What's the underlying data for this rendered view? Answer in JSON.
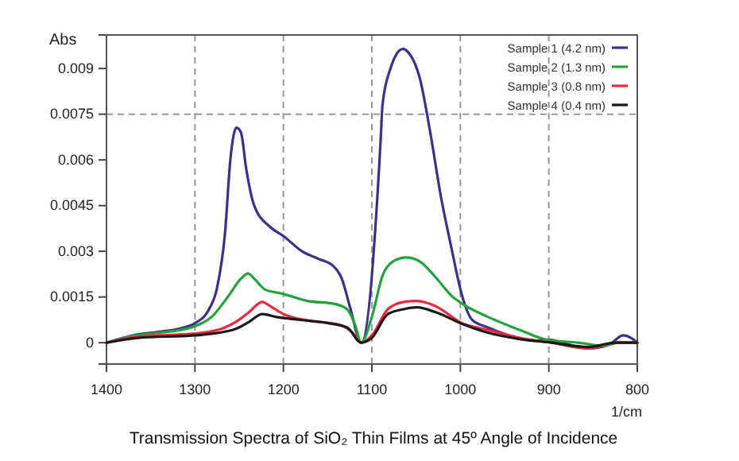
{
  "chart_data": {
    "type": "line",
    "title": "Transmission Spectra of SiO₂ Thin Films at 45º Angle of Incidence",
    "xlabel": "1/cm",
    "ylabel": "Abs",
    "xlim": [
      1400,
      800
    ],
    "xticks": [
      1400,
      1300,
      1200,
      1100,
      1000,
      900,
      800
    ],
    "ylim": [
      -0.0007,
      0.0101
    ],
    "yticks": [
      0,
      0.0015,
      0.003,
      0.0045,
      0.006,
      0.0075,
      0.009
    ],
    "grid": "x",
    "legend": "top right",
    "line_style": "solid",
    "marker": "none",
    "ref_lines": [
      {
        "axis": "y",
        "value": 0.0075,
        "color": "#999999",
        "line_style": "dashed"
      }
    ],
    "series": [
      {
        "name": "Sample 1 (4.2 nm)",
        "color": "#3b2f8f",
        "x": [
          1400,
          1370,
          1340,
          1316,
          1300,
          1284,
          1275,
          1266,
          1260,
          1253,
          1248,
          1242,
          1233,
          1215,
          1200,
          1179,
          1161,
          1143,
          1134,
          1125,
          1112,
          1090,
          1088,
          1079,
          1065,
          1058,
          1046,
          1034,
          1022,
          1010,
          998,
          987,
          969,
          945,
          915,
          900,
          879,
          855,
          831,
          816,
          807,
          800
        ],
        "values": [
          0,
          0.00024,
          0.00036,
          0.00047,
          0.00064,
          0.0011,
          0.0018,
          0.0036,
          0.006,
          0.00706,
          0.0069,
          0.0057,
          0.0045,
          0.0038,
          0.0035,
          0.003,
          0.00276,
          0.0025,
          0.0021,
          0.0012,
          0,
          0.0067,
          0.0078,
          0.009,
          0.00964,
          0.0095,
          0.0087,
          0.0069,
          0.0048,
          0.0031,
          0.00154,
          0.00076,
          0.0005,
          0.00024,
          7e-05,
          0.0001,
          -5e-05,
          -0.00019,
          -5e-05,
          0.00024,
          0.00016,
          0
        ]
      },
      {
        "name": "Sample 2 (1.3 nm)",
        "color": "#22a33a",
        "x": [
          1400,
          1370,
          1340,
          1316,
          1300,
          1281,
          1263,
          1248,
          1240,
          1233,
          1221,
          1200,
          1173,
          1143,
          1128,
          1119,
          1112,
          1100,
          1088,
          1076,
          1061,
          1046,
          1028,
          1010,
          998,
          969,
          933,
          903,
          867,
          837,
          819,
          800
        ],
        "values": [
          0,
          0.00022,
          0.00033,
          0.00042,
          0.00054,
          0.00085,
          0.0015,
          0.0021,
          0.00227,
          0.0021,
          0.00175,
          0.0016,
          0.00137,
          0.00128,
          0.0011,
          0.00059,
          0,
          0.00085,
          0.0022,
          0.00267,
          0.0028,
          0.00267,
          0.00215,
          0.00154,
          0.00128,
          0.00085,
          0.00042,
          0.0001,
          0,
          -0.0001,
          2e-05,
          0
        ]
      },
      {
        "name": "Sample 3 (0.8 nm)",
        "color": "#ee2a3a",
        "x": [
          1400,
          1364,
          1300,
          1269,
          1254,
          1239,
          1224,
          1215,
          1200,
          1173,
          1137,
          1122,
          1112,
          1100,
          1082,
          1064,
          1049,
          1028,
          998,
          969,
          933,
          897,
          855,
          825,
          800
        ],
        "values": [
          0,
          0.0002,
          0.0003,
          0.00047,
          0.00068,
          0.001,
          0.00134,
          0.0012,
          0.00094,
          0.00073,
          0.00059,
          0.00033,
          0,
          0.00024,
          0.0011,
          0.00134,
          0.00137,
          0.0012,
          0.00064,
          0.00042,
          0.00016,
          0,
          -0.00019,
          0,
          0
        ]
      },
      {
        "name": "Sample 4 (0.4 nm)",
        "color": "#1a1a1a",
        "x": [
          1400,
          1364,
          1300,
          1257,
          1239,
          1224,
          1209,
          1185,
          1149,
          1128,
          1112,
          1100,
          1082,
          1064,
          1049,
          1028,
          998,
          969,
          933,
          897,
          855,
          825,
          800
        ],
        "values": [
          0,
          0.00016,
          0.00024,
          0.00042,
          0.00068,
          0.00094,
          0.00085,
          0.00076,
          0.00064,
          0.0005,
          0,
          0.00016,
          0.00094,
          0.0011,
          0.00116,
          0.001,
          0.00062,
          0.00033,
          0.00012,
          0,
          -0.00014,
          0,
          0
        ]
      }
    ]
  }
}
